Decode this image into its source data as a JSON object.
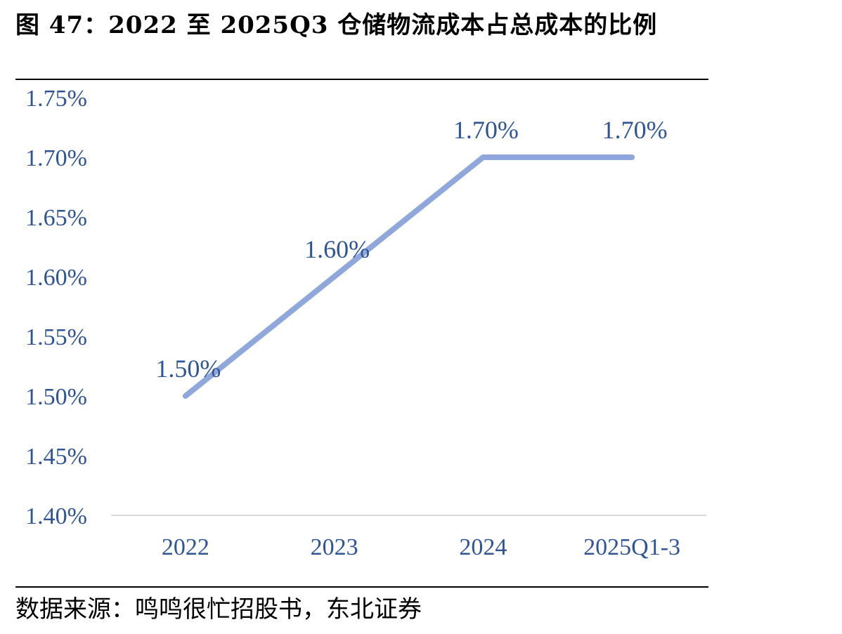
{
  "title": "图 47：2022 至 2025Q3 仓储物流成本占总成本的比例",
  "source": "数据来源：鸣鸣很忙招股书，东北证券",
  "colors": {
    "line": "#8fa7da",
    "text": "#2f5597",
    "axis": "#d9d9d9"
  },
  "chart_data": {
    "type": "line",
    "categories": [
      "2022",
      "2023",
      "2024",
      "2025Q1-3"
    ],
    "series": [
      {
        "values": [
          1.5,
          1.6,
          1.7,
          1.7
        ],
        "data_labels": [
          "1.50%",
          "1.60%",
          "1.70%",
          "1.70%"
        ]
      }
    ],
    "ylim": [
      1.4,
      1.75
    ],
    "yticks": [
      1.4,
      1.45,
      1.5,
      1.55,
      1.6,
      1.65,
      1.7,
      1.75
    ],
    "ytick_labels": [
      "1.40%",
      "1.45%",
      "1.50%",
      "1.55%",
      "1.60%",
      "1.65%",
      "1.70%",
      "1.75%"
    ],
    "grid": false,
    "legend": false
  }
}
